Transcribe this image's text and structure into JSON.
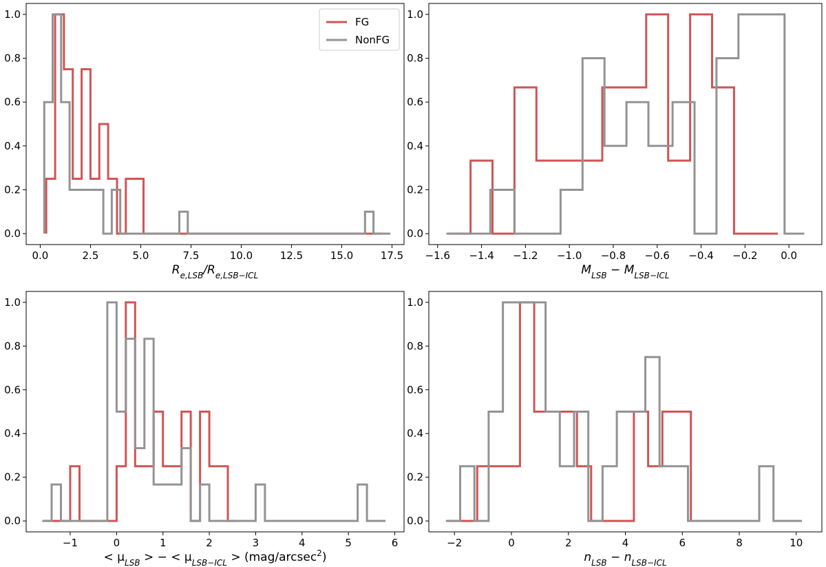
{
  "figure": {
    "description_colors": {
      "fg": "#d05454",
      "nonfg": "#939393"
    }
  },
  "chart_data": [
    {
      "type": "histogram",
      "xlabel": {
        "main": "R",
        "sub": "e,LSB",
        "mid": "/R",
        "sub2": "e,LSB−ICL"
      },
      "xlim": [
        -0.7,
        18.1
      ],
      "ylim": [
        -0.05,
        1.05
      ],
      "xticks": [
        0.0,
        2.5,
        5.0,
        7.5,
        10.0,
        12.5,
        15.0,
        17.5
      ],
      "xtick_labels": [
        "0.0",
        "2.5",
        "5.0",
        "7.5",
        "10.0",
        "12.5",
        "15.0",
        "17.5"
      ],
      "yticks": [
        0.0,
        0.2,
        0.4,
        0.6,
        0.8,
        1.0
      ],
      "ytick_labels": [
        "0.0",
        "0.2",
        "0.4",
        "0.6",
        "0.8",
        "1.0"
      ],
      "legend": {
        "position": "upper-right",
        "entries": [
          "FG",
          "NonFG"
        ]
      },
      "series": [
        {
          "name": "FG",
          "color": "#d05454",
          "edges": [
            0.3,
            0.74,
            1.18,
            1.62,
            2.06,
            2.5,
            2.94,
            3.38,
            3.82,
            4.26,
            4.7,
            5.14,
            5.58,
            6.02,
            6.46,
            6.9,
            7.34,
            7.78,
            8.22,
            8.66,
            9.1,
            9.54,
            9.98,
            10.42,
            10.86,
            11.3,
            11.74,
            12.18,
            12.62,
            13.06,
            13.5,
            13.94,
            14.38,
            14.82,
            15.26,
            15.7,
            16.14,
            16.58,
            17.02
          ],
          "values": [
            0.25,
            1.0,
            0.75,
            0.25,
            0.75,
            0.25,
            0.5,
            0.25,
            0.0,
            0.25,
            0.25,
            0,
            0,
            0,
            0,
            0,
            0,
            0,
            0,
            0,
            0,
            0,
            0,
            0,
            0,
            0,
            0,
            0,
            0,
            0,
            0,
            0,
            0,
            0,
            0,
            0,
            0,
            0
          ]
        },
        {
          "name": "NonFG",
          "color": "#939393",
          "edges": [
            0.2,
            0.62,
            1.04,
            1.46,
            1.88,
            2.3,
            2.72,
            3.14,
            3.56,
            3.98,
            4.4,
            4.82,
            5.24,
            5.66,
            6.08,
            6.5,
            6.92,
            7.34,
            7.76,
            8.18,
            8.6,
            9.02,
            9.44,
            9.86,
            10.28,
            10.7,
            11.12,
            11.54,
            11.96,
            12.38,
            12.8,
            13.22,
            13.64,
            14.06,
            14.48,
            14.9,
            15.32,
            15.74,
            16.16,
            16.58,
            17.0,
            17.42
          ],
          "values": [
            0.6,
            1.0,
            0.6,
            0.2,
            0.2,
            0.2,
            0.2,
            0.0,
            0.2,
            0,
            0,
            0,
            0,
            0,
            0,
            0,
            0.1,
            0,
            0,
            0,
            0,
            0,
            0,
            0,
            0,
            0,
            0,
            0,
            0,
            0,
            0,
            0,
            0,
            0,
            0,
            0,
            0,
            0,
            0.1,
            0,
            0
          ]
        }
      ]
    },
    {
      "type": "histogram",
      "xlabel": {
        "main": "M",
        "sub": "LSB",
        "mid": " − M",
        "sub2": "LSB−ICL"
      },
      "xlim": [
        -1.64,
        0.15
      ],
      "ylim": [
        -0.05,
        1.05
      ],
      "xticks": [
        -1.6,
        -1.4,
        -1.2,
        -1.0,
        -0.8,
        -0.6,
        -0.4,
        -0.2,
        0.0
      ],
      "xtick_labels": [
        "−1.6",
        "−1.4",
        "−1.2",
        "−1.0",
        "−0.8",
        "−0.6",
        "−0.4",
        "−0.2",
        "0.0"
      ],
      "yticks": [
        0.0,
        0.2,
        0.4,
        0.6,
        0.8,
        1.0
      ],
      "ytick_labels": [
        "0.0",
        "0.2",
        "0.4",
        "0.6",
        "0.8",
        "1.0"
      ],
      "series": [
        {
          "name": "FG",
          "color": "#d05454",
          "edges": [
            -1.55,
            -1.45,
            -1.35,
            -1.25,
            -1.15,
            -1.05,
            -0.95,
            -0.85,
            -0.75,
            -0.65,
            -0.55,
            -0.45,
            -0.35,
            -0.25,
            -0.15,
            -0.05
          ],
          "values": [
            0.0,
            0.333,
            0.0,
            0.667,
            0.333,
            0.333,
            0.333,
            0.667,
            0.667,
            1.0,
            0.333,
            1.0,
            0.667,
            0.0,
            0.0
          ]
        },
        {
          "name": "NonFG",
          "color": "#939393",
          "edges": [
            -1.56,
            -1.46,
            -1.36,
            -1.25,
            -1.15,
            -1.04,
            -0.94,
            -0.84,
            -0.74,
            -0.64,
            -0.53,
            -0.43,
            -0.33,
            -0.23,
            -0.12,
            -0.02,
            0.07
          ],
          "values": [
            0.0,
            0.0,
            0.2,
            0.0,
            0.0,
            0.2,
            0.8,
            0.4,
            0.6,
            0.4,
            0.6,
            0.0,
            0.8,
            1.0,
            1.0,
            0.0
          ]
        }
      ]
    },
    {
      "type": "histogram",
      "xlabel": {
        "text": "< μ",
        "sub": "LSB",
        "mid": " > − < μ",
        "sub2": "LSB−ICL",
        "tail": " >  (mag/arcsec",
        "sup": "2",
        "end": ")"
      },
      "xlim": [
        -1.95,
        6.2
      ],
      "ylim": [
        -0.05,
        1.05
      ],
      "xticks": [
        -1,
        0,
        1,
        2,
        3,
        4,
        5,
        6
      ],
      "xtick_labels": [
        "−1",
        "0",
        "1",
        "2",
        "3",
        "4",
        "5",
        "6"
      ],
      "yticks": [
        0.0,
        0.2,
        0.4,
        0.6,
        0.8,
        1.0
      ],
      "ytick_labels": [
        "0.0",
        "0.2",
        "0.4",
        "0.6",
        "0.8",
        "1.0"
      ],
      "series": [
        {
          "name": "FG",
          "color": "#d05454",
          "edges": [
            -1.6,
            -1.4,
            -1.2,
            -1.0,
            -0.8,
            -0.6,
            -0.4,
            -0.2,
            0.0,
            0.2,
            0.4,
            0.6,
            0.8,
            1.0,
            1.2,
            1.4,
            1.6,
            1.8,
            2.0,
            2.2,
            2.4,
            2.6
          ],
          "values": [
            0,
            0,
            0,
            0.25,
            0,
            0,
            0,
            0,
            0.25,
            1.0,
            0.25,
            0.25,
            0.5,
            0.25,
            0.25,
            0.5,
            0.0,
            0.5,
            0.25,
            0.25,
            0
          ]
        },
        {
          "name": "NonFG",
          "color": "#939393",
          "edges": [
            -1.6,
            -1.4,
            -1.2,
            -1.0,
            -0.8,
            -0.6,
            -0.4,
            -0.2,
            0.0,
            0.2,
            0.4,
            0.6,
            0.8,
            1.0,
            1.2,
            1.4,
            1.6,
            1.8,
            2.0,
            2.2,
            2.4,
            2.6,
            2.8,
            3.0,
            3.2,
            3.4,
            3.6,
            3.8,
            4.0,
            4.2,
            4.4,
            4.6,
            4.8,
            5.0,
            5.2,
            5.4,
            5.6,
            5.8
          ],
          "values": [
            0,
            0.167,
            0,
            0,
            0,
            0,
            0,
            1.0,
            0.5,
            0.833,
            0.333,
            0.833,
            0.167,
            0.167,
            0.167,
            0.333,
            0.0,
            0.167,
            0,
            0,
            0,
            0,
            0,
            0.167,
            0,
            0,
            0,
            0,
            0,
            0,
            0,
            0,
            0,
            0,
            0.167,
            0,
            0
          ]
        }
      ]
    },
    {
      "type": "histogram",
      "xlabel": {
        "main": "n",
        "sub": "LSB",
        "mid": " − n",
        "sub2": "LSB−ICL"
      },
      "xlim": [
        -2.9,
        10.9
      ],
      "ylim": [
        -0.05,
        1.05
      ],
      "xticks": [
        -2,
        0,
        2,
        4,
        6,
        8,
        10
      ],
      "xtick_labels": [
        "−2",
        "0",
        "2",
        "4",
        "6",
        "8",
        "10"
      ],
      "yticks": [
        0.0,
        0.2,
        0.4,
        0.6,
        0.8,
        1.0
      ],
      "ytick_labels": [
        "0.0",
        "0.2",
        "0.4",
        "0.6",
        "0.8",
        "1.0"
      ],
      "series": [
        {
          "name": "FG",
          "color": "#d05454",
          "edges": [
            -2.2,
            -1.7,
            -1.2,
            -0.7,
            -0.2,
            0.3,
            0.8,
            1.3,
            1.8,
            2.3,
            2.8,
            3.3,
            3.8,
            4.3,
            4.8,
            5.3,
            5.8,
            6.3
          ],
          "values": [
            0,
            0,
            0.25,
            0.25,
            0.25,
            1.0,
            0.5,
            0.5,
            0.5,
            0.25,
            0.0,
            0.0,
            0.0,
            0.5,
            0.25,
            0.5,
            0.5
          ]
        },
        {
          "name": "NonFG",
          "color": "#939393",
          "edges": [
            -2.3,
            -1.8,
            -1.3,
            -0.8,
            -0.3,
            0.2,
            0.7,
            1.2,
            1.7,
            2.2,
            2.7,
            3.2,
            3.7,
            4.2,
            4.7,
            5.2,
            5.7,
            6.2,
            6.7,
            7.2,
            7.7,
            8.2,
            8.7,
            9.2,
            9.7,
            10.2
          ],
          "values": [
            0,
            0.25,
            0.0,
            0.5,
            1.0,
            1.0,
            1.0,
            0.5,
            0.25,
            0.5,
            0.0,
            0.25,
            0.5,
            0.5,
            0.75,
            0.25,
            0.25,
            0,
            0,
            0,
            0,
            0,
            0.25,
            0,
            0
          ]
        }
      ]
    }
  ]
}
